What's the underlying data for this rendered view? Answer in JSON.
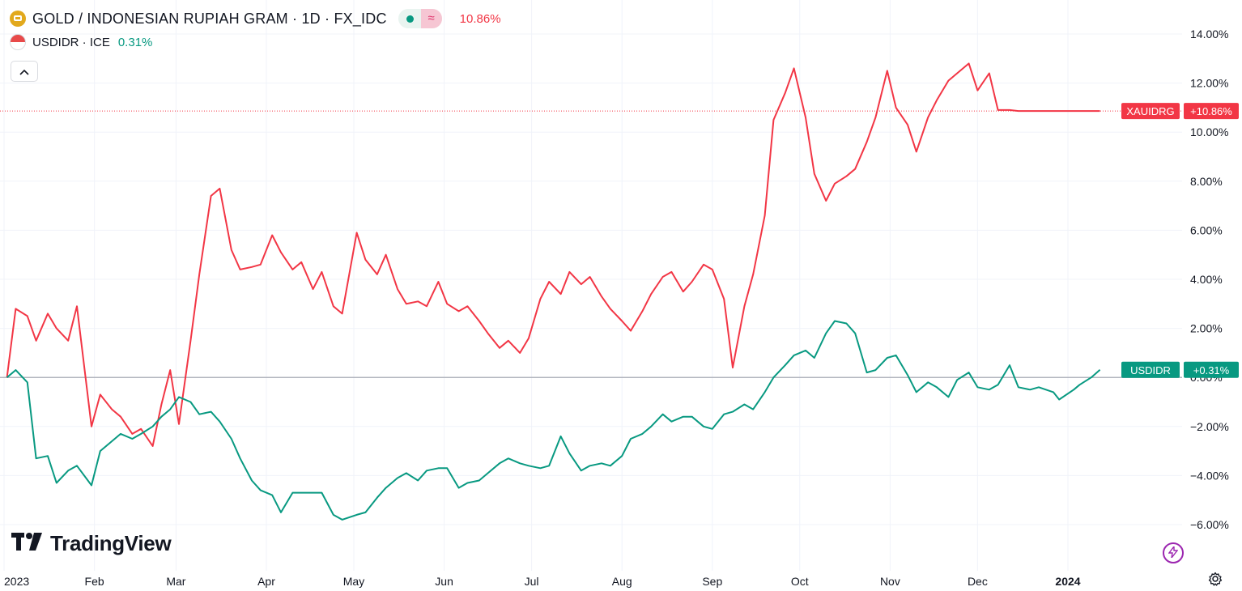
{
  "legend": {
    "main_title": "GOLD / INDONESIAN RUPIAH GRAM · 1D · FX_IDC",
    "main_change": "10.86%",
    "compare_title": "USDIDR · ICE",
    "compare_change": "0.31%",
    "status_icon": "market-open-dot",
    "wave_icon": "≈",
    "collapse_icon": "^"
  },
  "branding": {
    "logo_mark": "17",
    "logo_text": "TradingView"
  },
  "controls": {
    "bolt_icon": "⚡",
    "settings_icon": "⚙"
  },
  "colors": {
    "gold_series": "#f23645",
    "usd_series": "#089981",
    "grid": "#f0f3fa",
    "zero_line": "#b2b5be"
  },
  "chart_data": {
    "type": "line",
    "x_ticks": [
      "2023",
      "Feb",
      "Mar",
      "Apr",
      "May",
      "Jun",
      "Jul",
      "Aug",
      "Sep",
      "Oct",
      "Nov",
      "Dec",
      "2024"
    ],
    "y_ticks": [
      "14.00%",
      "12.00%",
      "10.00%",
      "8.00%",
      "6.00%",
      "4.00%",
      "2.00%",
      "0.00%",
      "−2.00%",
      "−4.00%",
      "−6.00%"
    ],
    "ylim": [
      -7.3,
      14.8
    ],
    "grid": true,
    "price_labels": [
      {
        "series": "XAUIDRG",
        "label": "XAUIDRG",
        "value_text": "+10.86%",
        "value": 10.86
      },
      {
        "series": "USDIDR",
        "label": "USDIDR",
        "value_text": "+0.31%",
        "value": 0.31
      }
    ],
    "series": [
      {
        "name": "XAUIDRG",
        "color": "#f23645",
        "x": [
          "2023-01-02",
          "2023-01-05",
          "2023-01-09",
          "2023-01-12",
          "2023-01-16",
          "2023-01-19",
          "2023-01-23",
          "2023-01-26",
          "2023-01-31",
          "2023-02-03",
          "2023-02-07",
          "2023-02-10",
          "2023-02-14",
          "2023-02-17",
          "2023-02-21",
          "2023-02-24",
          "2023-02-27",
          "2023-03-02",
          "2023-03-06",
          "2023-03-09",
          "2023-03-13",
          "2023-03-16",
          "2023-03-20",
          "2023-03-23",
          "2023-03-27",
          "2023-03-30",
          "2023-04-03",
          "2023-04-06",
          "2023-04-10",
          "2023-04-13",
          "2023-04-17",
          "2023-04-20",
          "2023-04-24",
          "2023-04-27",
          "2023-05-02",
          "2023-05-05",
          "2023-05-09",
          "2023-05-12",
          "2023-05-16",
          "2023-05-19",
          "2023-05-23",
          "2023-05-26",
          "2023-05-30",
          "2023-06-02",
          "2023-06-06",
          "2023-06-09",
          "2023-06-13",
          "2023-06-16",
          "2023-06-20",
          "2023-06-23",
          "2023-06-27",
          "2023-06-30",
          "2023-07-04",
          "2023-07-07",
          "2023-07-11",
          "2023-07-14",
          "2023-07-18",
          "2023-07-21",
          "2023-07-25",
          "2023-07-28",
          "2023-08-01",
          "2023-08-04",
          "2023-08-08",
          "2023-08-11",
          "2023-08-15",
          "2023-08-18",
          "2023-08-22",
          "2023-08-25",
          "2023-08-29",
          "2023-09-01",
          "2023-09-05",
          "2023-09-08",
          "2023-09-12",
          "2023-09-15",
          "2023-09-19",
          "2023-09-22",
          "2023-09-26",
          "2023-09-29",
          "2023-10-03",
          "2023-10-06",
          "2023-10-10",
          "2023-10-13",
          "2023-10-17",
          "2023-10-20",
          "2023-10-24",
          "2023-10-27",
          "2023-10-31",
          "2023-11-03",
          "2023-11-07",
          "2023-11-10",
          "2023-11-14",
          "2023-11-17",
          "2023-11-21",
          "2023-11-24",
          "2023-11-28",
          "2023-12-01",
          "2023-12-05",
          "2023-12-08",
          "2023-12-12",
          "2023-12-15",
          "2023-12-19",
          "2023-12-22",
          "2023-12-27",
          "2023-12-29",
          "2024-01-03",
          "2024-01-05",
          "2024-01-09",
          "2024-01-12"
        ],
        "values": [
          0.0,
          2.8,
          2.5,
          1.5,
          2.6,
          2.0,
          1.5,
          2.9,
          -2.0,
          -0.7,
          -1.3,
          -1.6,
          -2.3,
          -2.1,
          -2.8,
          -1.1,
          0.3,
          -1.9,
          1.5,
          4.2,
          7.4,
          7.7,
          5.2,
          4.4,
          4.5,
          4.6,
          5.8,
          5.1,
          4.4,
          4.7,
          3.6,
          4.3,
          2.9,
          2.6,
          5.9,
          4.8,
          4.2,
          5.0,
          3.6,
          3.0,
          3.1,
          2.9,
          3.9,
          3.0,
          2.7,
          2.9,
          2.3,
          1.8,
          1.2,
          1.5,
          1.0,
          1.6,
          3.2,
          3.9,
          3.4,
          4.3,
          3.8,
          4.1,
          3.3,
          2.8,
          2.3,
          1.9,
          2.7,
          3.4,
          4.1,
          4.3,
          3.5,
          3.9,
          4.6,
          4.4,
          3.2,
          0.4,
          2.9,
          4.2,
          6.6,
          10.5,
          11.6,
          12.6,
          10.6,
          8.3,
          7.2,
          7.9,
          8.2,
          8.5,
          9.6,
          10.6,
          12.5,
          11.0,
          10.3,
          9.2,
          10.6,
          11.3,
          12.1,
          12.4,
          12.8,
          11.7,
          12.4,
          10.9,
          10.9,
          10.86,
          10.86,
          10.86,
          10.86,
          10.86,
          10.86,
          10.86,
          10.86,
          10.86
        ]
      },
      {
        "name": "USDIDR",
        "color": "#089981",
        "x": [
          "2023-01-02",
          "2023-01-05",
          "2023-01-09",
          "2023-01-12",
          "2023-01-16",
          "2023-01-19",
          "2023-01-23",
          "2023-01-26",
          "2023-01-31",
          "2023-02-03",
          "2023-02-07",
          "2023-02-10",
          "2023-02-14",
          "2023-02-17",
          "2023-02-21",
          "2023-02-24",
          "2023-02-27",
          "2023-03-02",
          "2023-03-06",
          "2023-03-09",
          "2023-03-13",
          "2023-03-16",
          "2023-03-20",
          "2023-03-23",
          "2023-03-27",
          "2023-03-30",
          "2023-04-03",
          "2023-04-06",
          "2023-04-10",
          "2023-04-13",
          "2023-04-17",
          "2023-04-20",
          "2023-04-24",
          "2023-04-27",
          "2023-05-02",
          "2023-05-05",
          "2023-05-09",
          "2023-05-12",
          "2023-05-16",
          "2023-05-19",
          "2023-05-23",
          "2023-05-26",
          "2023-05-30",
          "2023-06-02",
          "2023-06-06",
          "2023-06-09",
          "2023-06-13",
          "2023-06-16",
          "2023-06-20",
          "2023-06-23",
          "2023-06-27",
          "2023-06-30",
          "2023-07-04",
          "2023-07-07",
          "2023-07-11",
          "2023-07-14",
          "2023-07-18",
          "2023-07-21",
          "2023-07-25",
          "2023-07-28",
          "2023-08-01",
          "2023-08-04",
          "2023-08-08",
          "2023-08-11",
          "2023-08-15",
          "2023-08-18",
          "2023-08-22",
          "2023-08-25",
          "2023-08-29",
          "2023-09-01",
          "2023-09-05",
          "2023-09-08",
          "2023-09-12",
          "2023-09-15",
          "2023-09-19",
          "2023-09-22",
          "2023-09-26",
          "2023-09-29",
          "2023-10-03",
          "2023-10-06",
          "2023-10-10",
          "2023-10-13",
          "2023-10-17",
          "2023-10-20",
          "2023-10-24",
          "2023-10-27",
          "2023-10-31",
          "2023-11-03",
          "2023-11-07",
          "2023-11-10",
          "2023-11-14",
          "2023-11-17",
          "2023-11-21",
          "2023-11-24",
          "2023-11-28",
          "2023-12-01",
          "2023-12-05",
          "2023-12-08",
          "2023-12-12",
          "2023-12-15",
          "2023-12-19",
          "2023-12-22",
          "2023-12-27",
          "2023-12-29",
          "2024-01-03",
          "2024-01-05",
          "2024-01-09",
          "2024-01-12"
        ],
        "values": [
          0.0,
          0.3,
          -0.2,
          -3.3,
          -3.2,
          -4.3,
          -3.8,
          -3.6,
          -4.4,
          -3.0,
          -2.6,
          -2.3,
          -2.5,
          -2.3,
          -2.0,
          -1.6,
          -1.3,
          -0.8,
          -1.0,
          -1.5,
          -1.4,
          -1.8,
          -2.5,
          -3.3,
          -4.2,
          -4.6,
          -4.8,
          -5.5,
          -4.7,
          -4.7,
          -4.7,
          -4.7,
          -5.6,
          -5.8,
          -5.6,
          -5.5,
          -4.9,
          -4.5,
          -4.1,
          -3.9,
          -4.2,
          -3.8,
          -3.7,
          -3.7,
          -4.5,
          -4.3,
          -4.2,
          -3.9,
          -3.5,
          -3.3,
          -3.5,
          -3.6,
          -3.7,
          -3.6,
          -2.4,
          -3.1,
          -3.8,
          -3.6,
          -3.5,
          -3.6,
          -3.2,
          -2.5,
          -2.3,
          -2.0,
          -1.5,
          -1.8,
          -1.6,
          -1.6,
          -2.0,
          -2.1,
          -1.5,
          -1.4,
          -1.1,
          -1.3,
          -0.6,
          0.0,
          0.5,
          0.9,
          1.1,
          0.8,
          1.8,
          2.3,
          2.2,
          1.8,
          0.2,
          0.3,
          0.8,
          0.9,
          0.1,
          -0.6,
          -0.2,
          -0.4,
          -0.8,
          -0.1,
          0.2,
          -0.4,
          -0.5,
          -0.3,
          0.5,
          -0.4,
          -0.5,
          -0.4,
          -0.6,
          -0.9,
          -0.5,
          -0.3,
          0.0,
          0.31
        ]
      }
    ]
  }
}
